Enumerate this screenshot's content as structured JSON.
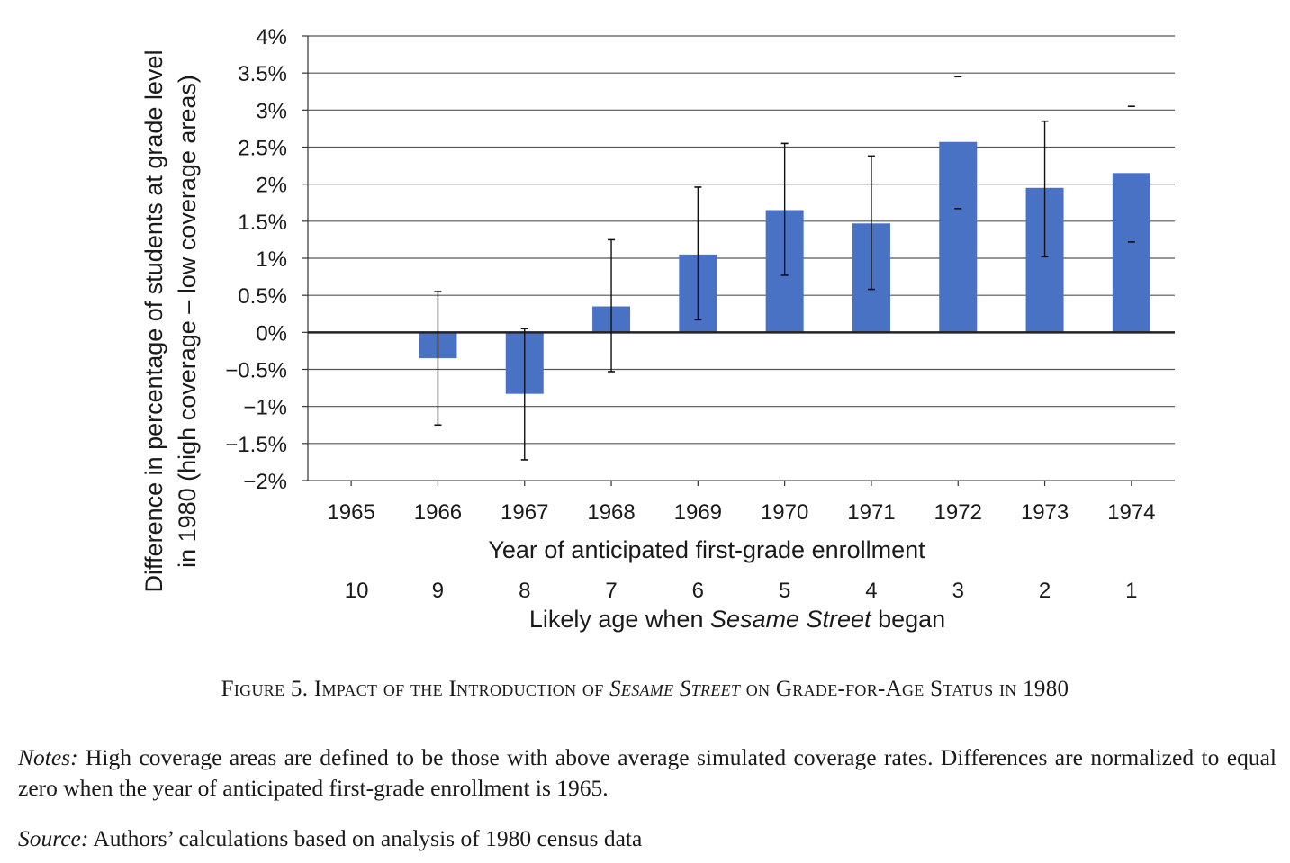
{
  "chart_data": {
    "type": "bar",
    "categories": [
      "1965",
      "1966",
      "1967",
      "1968",
      "1969",
      "1970",
      "1971",
      "1972",
      "1973",
      "1974"
    ],
    "secondary_categories": [
      "10",
      "9",
      "8",
      "7",
      "6",
      "5",
      "4",
      "3",
      "2",
      "1"
    ],
    "values": [
      0.0,
      -0.35,
      -0.83,
      0.35,
      1.05,
      1.65,
      1.47,
      2.57,
      1.95,
      2.15
    ],
    "error_low": [
      null,
      -1.25,
      -1.72,
      -0.53,
      0.17,
      0.77,
      0.58,
      1.67,
      1.02,
      1.22
    ],
    "error_high": [
      null,
      0.55,
      0.05,
      1.25,
      1.96,
      2.55,
      2.38,
      3.45,
      2.85,
      3.05
    ],
    "error_whisker": [
      false,
      true,
      true,
      true,
      true,
      true,
      true,
      false,
      true,
      false
    ],
    "ylim": [
      -2,
      4
    ],
    "yticks": [
      4,
      3.5,
      3,
      2.5,
      2,
      1.5,
      1,
      0.5,
      0,
      -0.5,
      -1,
      -1.5,
      -2
    ],
    "ytick_labels": [
      "4%",
      "3.5%",
      "3%",
      "2.5%",
      "2%",
      "1.5%",
      "1%",
      "0.5%",
      "0%",
      "−0.5%",
      "−1%",
      "−1.5%",
      "−2%"
    ],
    "ylabel_line1": "Difference in percentage of students at grade level",
    "ylabel_line2": "in 1980 (high coverage – low coverage areas)",
    "xlabel": "Year of anticipated first-grade enrollment",
    "xlabel2_prefix": "Likely age when ",
    "xlabel2_italic": "Sesame Street",
    "xlabel2_suffix": " began",
    "grid": true,
    "bar_color": "#4a72c4"
  },
  "caption": {
    "prefix": "Figure 5. Impact of the Introduction of ",
    "italic": "Sesame Street",
    "suffix": " on Grade-for-Age Status in 1980"
  },
  "notes": {
    "label": "Notes:",
    "text": " High coverage areas are defined to be those with above average simulated coverage rates. Differences are normalized to equal zero when the year of anticipated first-grade enrollment is 1965."
  },
  "source": {
    "label": "Source:",
    "text": " Authors’ calculations based on analysis of 1980 census data"
  }
}
